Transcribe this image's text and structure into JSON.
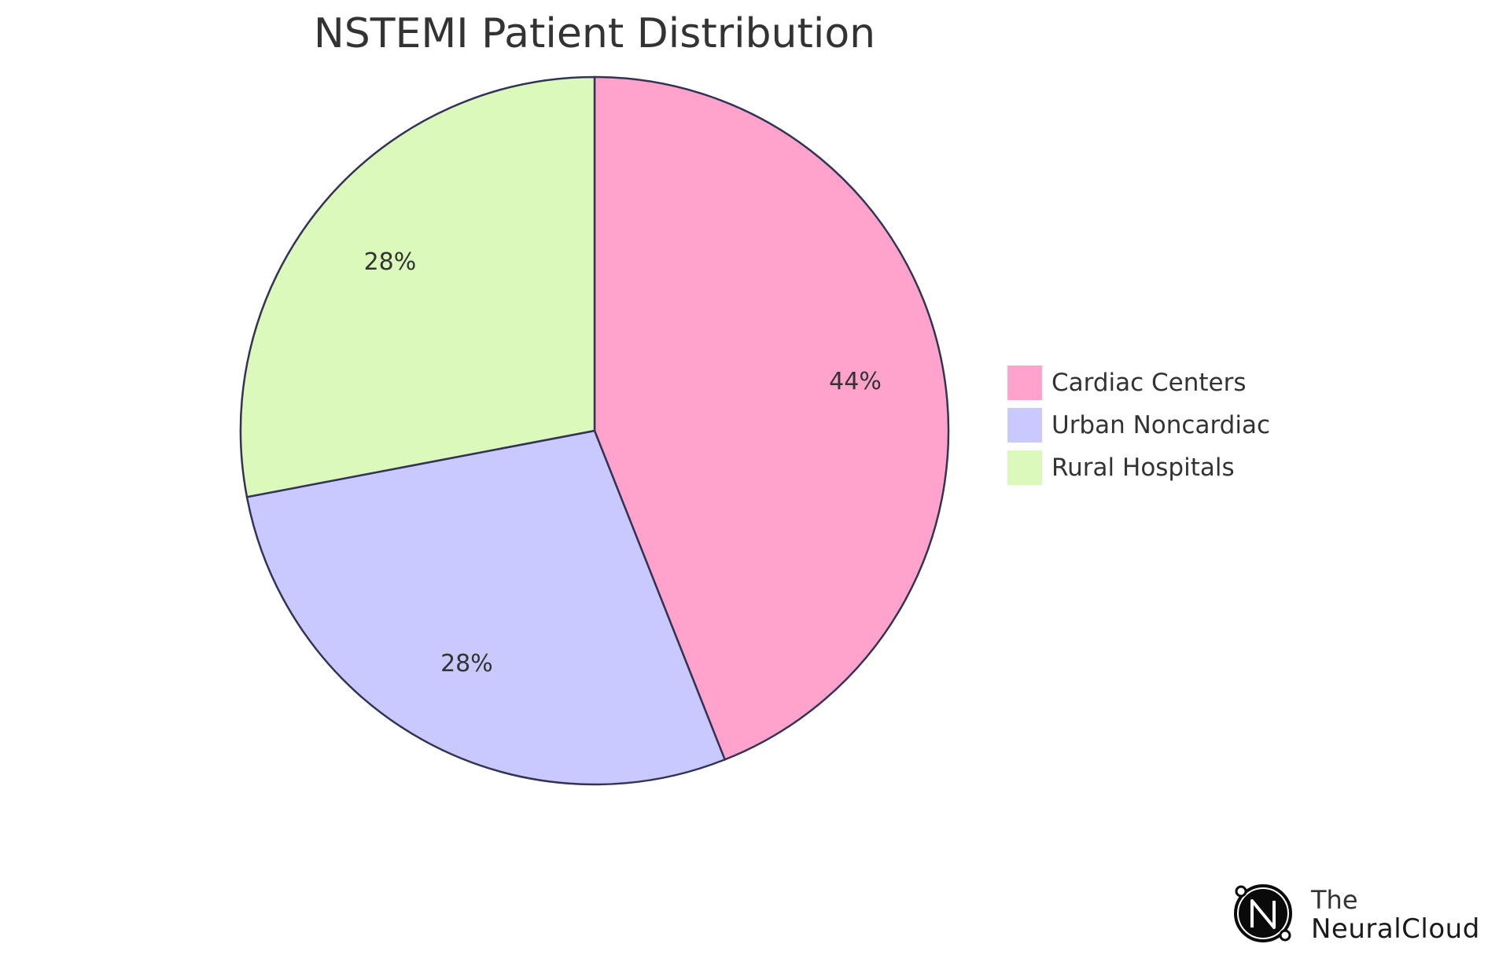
{
  "chart_data": {
    "type": "pie",
    "title": "NSTEMI Patient Distribution",
    "categories": [
      "Cardiac Centers",
      "Urban Noncardiac",
      "Rural Hospitals"
    ],
    "values": [
      44,
      28,
      28
    ],
    "labels": [
      "44%",
      "28%",
      "28%"
    ],
    "colors": [
      "#FFA3CD",
      "#C9C9FF",
      "#DBF9BA"
    ],
    "legend_position": "right",
    "start_angle": "12 o'clock, clockwise"
  },
  "logo": {
    "icon": "neuralcloud-logo-icon",
    "line1": "The",
    "line2": "NeuralCloud"
  }
}
